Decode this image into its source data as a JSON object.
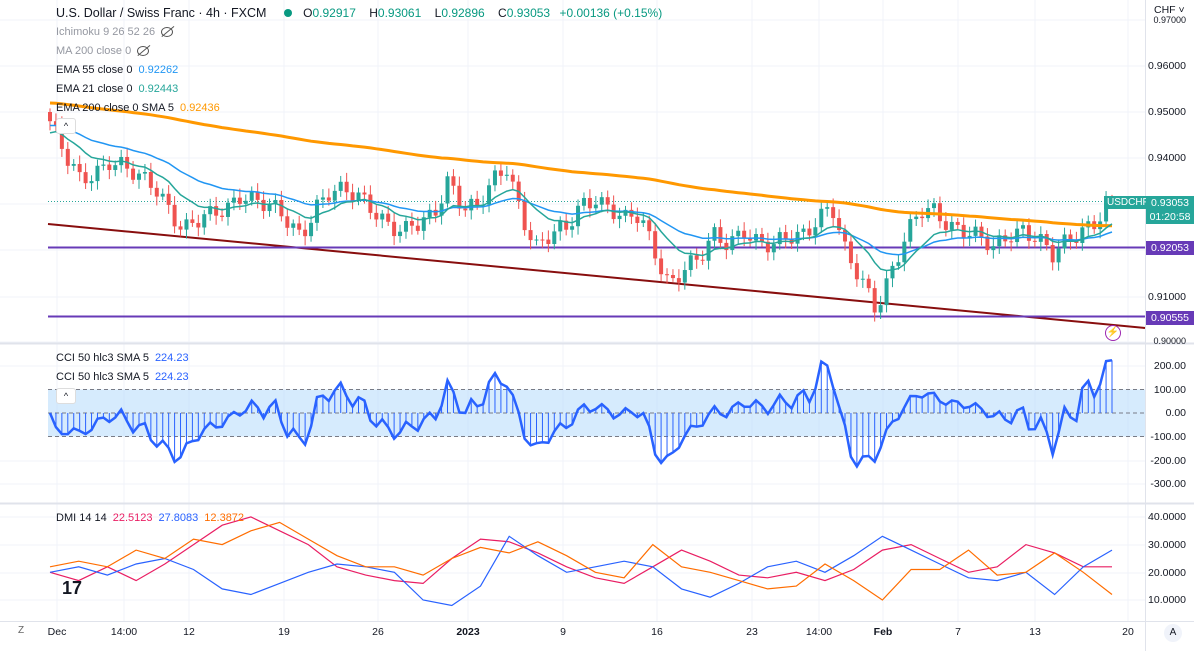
{
  "header": {
    "title": "U.S. Dollar / Swiss Franc · 4h · FXCM",
    "open_label": "O",
    "open": "0.92917",
    "high_label": "H",
    "high": "0.93061",
    "low_label": "L",
    "low": "0.92896",
    "close_label": "C",
    "close": "0.93053",
    "change": "+0.00136 (+0.15%)"
  },
  "indicators": [
    {
      "label": "Ichimoku 9 26 52 26",
      "value": "",
      "hidden": true
    },
    {
      "label": "MA 200 close 0",
      "value": "",
      "hidden": true
    },
    {
      "label": "EMA 55 close 0",
      "value": "0.92262",
      "color": "#2196f3"
    },
    {
      "label": "EMA 21 close 0",
      "value": "0.92443",
      "color": "#26a69a"
    },
    {
      "label": "EMA 200 close 0 SMA 5",
      "value": "0.92436",
      "color": "#ff9800"
    }
  ],
  "cci": {
    "label": "CCI 50 hlc3 SMA 5",
    "value": "224.23",
    "label2": "CCI 50 hlc3 SMA 5",
    "value2": "224.23"
  },
  "dmi": {
    "label": "DMI 14 14",
    "plus": "22.5123",
    "minus": "27.8083",
    "adx": "12.3872",
    "colors": {
      "plus": "#e91e63",
      "minus": "#2962ff",
      "adx": "#ff6d00"
    },
    "plus_values": [
      20,
      17,
      22,
      17,
      23,
      30,
      37,
      40,
      35,
      30,
      22,
      19,
      17,
      16,
      25,
      32,
      31,
      27,
      22,
      18,
      16,
      22,
      28,
      24,
      19,
      18,
      20,
      17,
      21,
      28,
      30,
      25,
      20,
      22,
      30,
      27,
      22,
      22
    ],
    "minus_values": [
      20,
      22,
      19,
      23,
      25,
      21,
      14,
      12,
      16,
      20,
      23,
      22,
      20,
      10,
      8,
      15,
      33,
      26,
      20,
      22,
      24,
      22,
      14,
      11,
      16,
      22,
      24,
      20,
      26,
      33,
      28,
      23,
      18,
      17,
      20,
      12,
      22,
      28
    ],
    "adx_values": [
      22,
      24,
      22,
      28,
      25,
      32,
      30,
      35,
      38,
      32,
      26,
      22,
      22,
      19,
      25,
      29,
      27,
      31,
      26,
      20,
      18,
      30,
      22,
      20,
      17,
      14,
      15,
      23,
      17,
      10,
      21,
      21,
      28,
      19,
      20,
      27,
      20,
      12
    ]
  },
  "price_axis": {
    "currency": "CHF",
    "ticks": [
      "0.97000",
      "0.96000",
      "0.95000",
      "0.94000",
      "0.91000",
      "0.90000"
    ],
    "symbol": "USDCHF",
    "last_price": "0.93053",
    "countdown": "01:20:58",
    "level1": "0.92053",
    "level2": "0.90555"
  },
  "cci_axis": [
    "200.00",
    "100.00",
    "0.00",
    "-100.00",
    "-200.00",
    "-300.00"
  ],
  "dmi_axis": [
    "40.0000",
    "30.0000",
    "20.0000",
    "10.0000"
  ],
  "time_axis": [
    "Dec",
    "14:00",
    "12",
    "19",
    "26",
    "2023",
    "9",
    "16",
    "23",
    "14:00",
    "Feb",
    "7",
    "13",
    "20"
  ],
  "colors": {
    "up": "#26a69a",
    "down": "#ef5350",
    "ema200": "#ff9800",
    "ema55": "#2196f3",
    "ema21": "#26a69a",
    "hline": "#673ab7",
    "trend": "#880e0e",
    "cci": "#2962ff"
  },
  "closes": [
    0.948,
    0.94,
    0.935,
    0.937,
    0.94,
    0.938,
    0.935,
    0.934,
    0.93,
    0.925,
    0.926,
    0.927,
    0.929,
    0.933,
    0.931,
    0.929,
    0.926,
    0.923,
    0.93,
    0.933,
    0.932,
    0.931,
    0.929,
    0.926,
    0.924,
    0.925,
    0.927,
    0.936,
    0.93,
    0.929,
    0.934,
    0.938,
    0.928,
    0.921,
    0.923,
    0.924,
    0.93,
    0.932,
    0.929,
    0.926,
    0.927,
    0.92,
    0.913,
    0.916,
    0.917,
    0.923,
    0.922,
    0.925,
    0.921,
    0.92,
    0.923,
    0.924,
    0.927,
    0.929,
    0.918,
    0.914,
    0.908,
    0.915,
    0.922,
    0.928,
    0.929,
    0.926,
    0.924,
    0.922,
    0.92,
    0.924,
    0.925,
    0.922,
    0.918,
    0.922,
    0.925,
    0.927,
    0.931
  ],
  "auto_label": "A",
  "z_label": "Z"
}
